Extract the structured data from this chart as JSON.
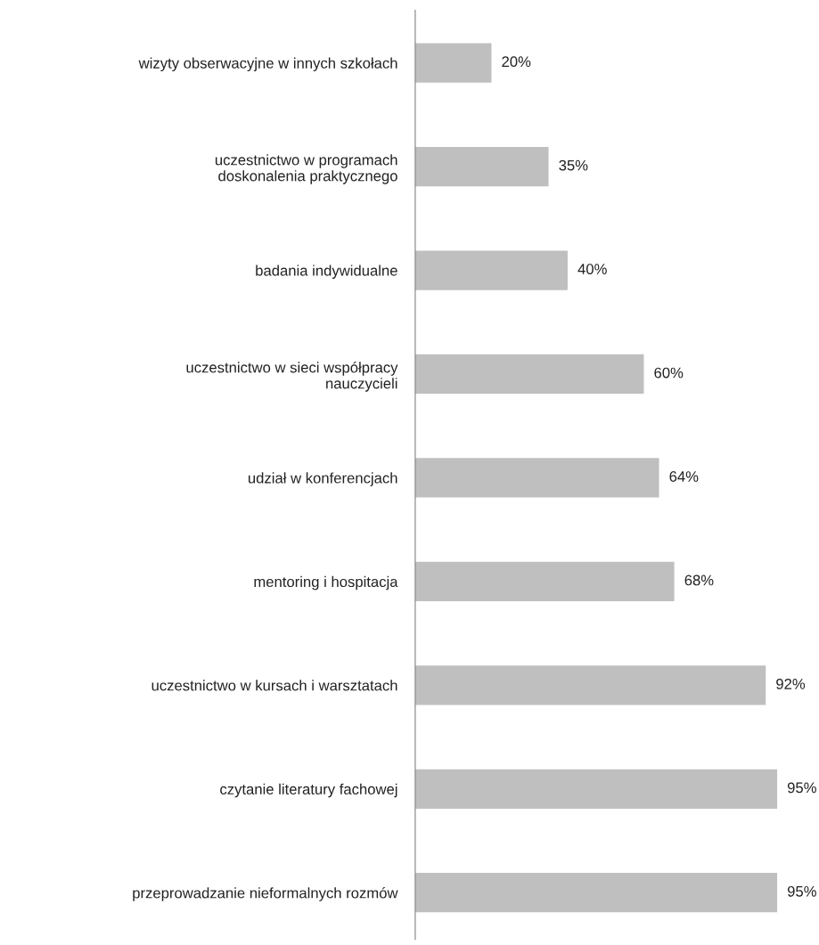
{
  "chart_data": {
    "type": "bar",
    "orientation": "horizontal",
    "categories": [
      "wizyty obserwacyjne w innych szkołach",
      "uczestnictwo w programach\ndoskonalenia praktycznego",
      "badania indywidualne",
      "uczestnictwo w sieci współpracy\nnauczycieli",
      "udział w konferencjach",
      "mentoring i hospitacja",
      "uczestnictwo w kursach i warsztatach",
      "czytanie literatury fachowej",
      "przeprowadzanie nieformalnych rozmów"
    ],
    "values": [
      20,
      35,
      40,
      60,
      64,
      68,
      92,
      95,
      95
    ],
    "value_labels": [
      "20%",
      "35%",
      "40%",
      "60%",
      "64%",
      "68%",
      "92%",
      "95%",
      "95%"
    ],
    "color": "#bfbfbf",
    "tick_labels": "y",
    "grid": false
  }
}
